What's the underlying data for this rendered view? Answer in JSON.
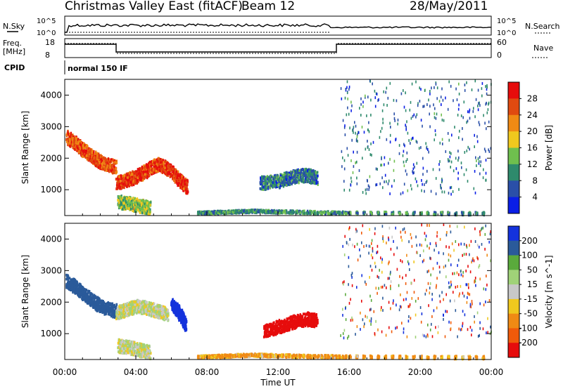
{
  "header": {
    "station": "Christmas Valley East (fitACF)",
    "beam": "Beam 12",
    "date": "28/May/2011"
  },
  "status_panels": {
    "nsky_label": "N.Sky",
    "nsky_ticks": [
      "10^5",
      "10^0"
    ],
    "nsearch_label": "N.Search",
    "nsearch_ticks": [
      "10^5",
      "10^0"
    ],
    "freq_label": "Freq.",
    "freq_unit": "[MHz]",
    "freq_ticks": [
      "18",
      "8"
    ],
    "nave_label": "Nave",
    "nave_ticks": [
      "60",
      "0"
    ],
    "cpid_label": "CPID",
    "cpid_value": "normal 150 IF"
  },
  "colors": {
    "power_scale": [
      "#0a1ee6",
      "#2a4fa8",
      "#2e8a6c",
      "#6fbf4e",
      "#f0c81e",
      "#f08a14",
      "#e04a10",
      "#e60c0c"
    ],
    "velocity_scale": [
      "#1432dc",
      "#2a5a9a",
      "#5aaa3c",
      "#a0d278",
      "#c8c8c8",
      "#f0c81e",
      "#f08a14",
      "#f05a0a",
      "#e60c0c"
    ]
  },
  "chart_data": [
    {
      "type": "heatmap",
      "name": "power",
      "xlabel": "Time UT",
      "ylabel": "Slant Range [km]",
      "xlim": [
        0,
        24
      ],
      "ylim": [
        180,
        4500
      ],
      "xticks": [
        "00:00",
        "04:00",
        "08:00",
        "12:00",
        "16:00",
        "20:00",
        "00:00"
      ],
      "yticks": [
        1000,
        2000,
        3000,
        4000
      ],
      "colorbar": {
        "label": "Power [dB]",
        "ticks": [
          "28",
          "24",
          "20",
          "16",
          "12",
          "8",
          "4"
        ],
        "range": [
          0,
          30
        ]
      },
      "features": [
        {
          "desc": "early band",
          "t": [
            0.1,
            0.6,
            1.0,
            1.6,
            2.2,
            2.9
          ],
          "range_km": [
            2700,
            2500,
            2300,
            2050,
            1850,
            1750
          ],
          "power_db": 24
        },
        {
          "desc": "main echo",
          "t": [
            2.9,
            3.5,
            4.0,
            4.6,
            5.2,
            5.8,
            6.4,
            6.9
          ],
          "range_km": [
            1250,
            1350,
            1450,
            1650,
            1850,
            1700,
            1350,
            1100
          ],
          "power_db": 26
        },
        {
          "desc": "near range",
          "t": [
            3.0,
            3.6,
            4.2,
            4.8
          ],
          "range_km": [
            650,
            600,
            520,
            450
          ],
          "power_db": 14
        },
        {
          "desc": "midnight echo",
          "t": [
            11.0,
            12.0,
            12.8,
            13.6,
            14.2
          ],
          "range_km": [
            1250,
            1300,
            1450,
            1500,
            1400
          ],
          "power_db": 8
        },
        {
          "desc": "ground scatter",
          "t": [
            7.5,
            9.0,
            10.5,
            12.0,
            14.0,
            16.0,
            20.0,
            23.9
          ],
          "range_km": [
            300,
            330,
            360,
            340,
            320,
            300,
            290,
            280
          ],
          "power_db": 10
        }
      ]
    },
    {
      "type": "heatmap",
      "name": "velocity",
      "xlabel": "Time UT",
      "ylabel": "Slant Range [km]",
      "xlim": [
        0,
        24
      ],
      "ylim": [
        180,
        4500
      ],
      "xticks": [
        "00:00",
        "04:00",
        "08:00",
        "12:00",
        "16:00",
        "20:00",
        "00:00"
      ],
      "yticks": [
        1000,
        2000,
        3000,
        4000
      ],
      "colorbar": {
        "label": "Velocity [m s^-1]",
        "ticks": [
          "200",
          "100",
          "50",
          "15",
          "-15",
          "-50",
          "-100",
          "-200"
        ],
        "range": [
          -250,
          250
        ]
      },
      "features": [
        {
          "desc": "early band",
          "t": [
            0.1,
            0.6,
            1.0,
            1.6,
            2.2,
            2.9
          ],
          "range_km": [
            2700,
            2500,
            2300,
            2050,
            1850,
            1750
          ],
          "velocity": 140
        },
        {
          "desc": "main echo",
          "t": [
            2.9,
            3.5,
            4.0,
            4.6,
            5.2,
            5.8
          ],
          "range_km": [
            1700,
            1800,
            1900,
            1850,
            1750,
            1650
          ],
          "velocity": 0
        },
        {
          "desc": "post 06 echo",
          "t": [
            6.0,
            6.4,
            6.8
          ],
          "range_km": [
            1950,
            1700,
            1300
          ],
          "velocity": 220
        },
        {
          "desc": "near range",
          "t": [
            3.0,
            3.6,
            4.2,
            4.8
          ],
          "range_km": [
            650,
            600,
            520,
            450
          ],
          "velocity": 0
        },
        {
          "desc": "midnight echo",
          "t": [
            11.2,
            12.0,
            12.8,
            13.6,
            14.2
          ],
          "range_km": [
            1100,
            1250,
            1400,
            1500,
            1450
          ],
          "velocity": -200
        },
        {
          "desc": "ground scatter",
          "t": [
            7.5,
            9.0,
            10.5,
            12.0,
            14.0,
            16.0,
            20.0,
            23.9
          ],
          "range_km": [
            300,
            330,
            360,
            340,
            320,
            300,
            290,
            280
          ],
          "velocity": -40
        }
      ]
    }
  ]
}
